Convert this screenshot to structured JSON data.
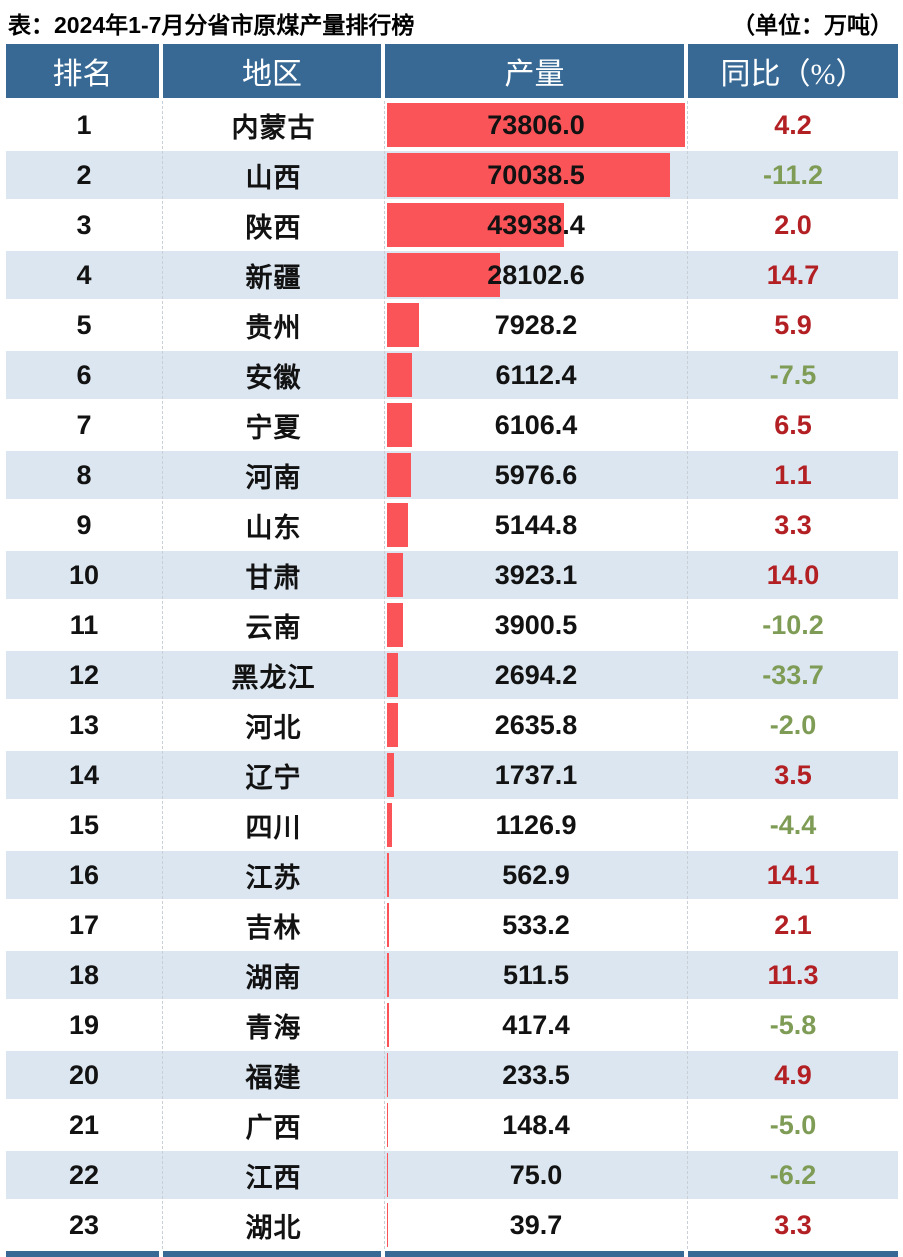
{
  "title": "表：2024年1-7月分省市原煤产量排行榜",
  "unit_label": "（单位：万吨）",
  "table": {
    "headers": {
      "rank": "排名",
      "region": "地区",
      "production": "产量",
      "yoy": "同比（%）"
    }
  },
  "chart_data": {
    "type": "bar",
    "title": "2024年1-7月分省市原煤产量排行榜",
    "unit": "万吨",
    "orientation": "horizontal",
    "xlim": [
      0,
      73806.0
    ],
    "categories": [
      "内蒙古",
      "山西",
      "陕西",
      "新疆",
      "贵州",
      "安徽",
      "宁夏",
      "河南",
      "山东",
      "甘肃",
      "云南",
      "黑龙江",
      "河北",
      "辽宁",
      "四川",
      "江苏",
      "吉林",
      "湖南",
      "青海",
      "福建",
      "广西",
      "江西",
      "湖北"
    ],
    "series": [
      {
        "name": "产量（万吨）",
        "values": [
          73806.0,
          70038.5,
          43938.4,
          28102.6,
          7928.2,
          6112.4,
          6106.4,
          5976.6,
          5144.8,
          3923.1,
          3900.5,
          2694.2,
          2635.8,
          1737.1,
          1126.9,
          562.9,
          533.2,
          511.5,
          417.4,
          233.5,
          148.4,
          75.0,
          39.7
        ]
      },
      {
        "name": "同比（%）",
        "values": [
          4.2,
          -11.2,
          2.0,
          14.7,
          5.9,
          -7.5,
          6.5,
          1.1,
          3.3,
          14.0,
          -10.2,
          -33.7,
          -2.0,
          3.5,
          -4.4,
          14.1,
          2.1,
          11.3,
          -5.8,
          4.9,
          -5.0,
          -6.2,
          3.3
        ]
      }
    ]
  },
  "colors": {
    "header_bg": "#386994",
    "row_alt_bg": "#DCE6F0",
    "bar": "#FB5458",
    "positive": "#B22024",
    "negative": "#7E9C55",
    "sep": "#C9CFD6",
    "title_color": "#000000"
  }
}
